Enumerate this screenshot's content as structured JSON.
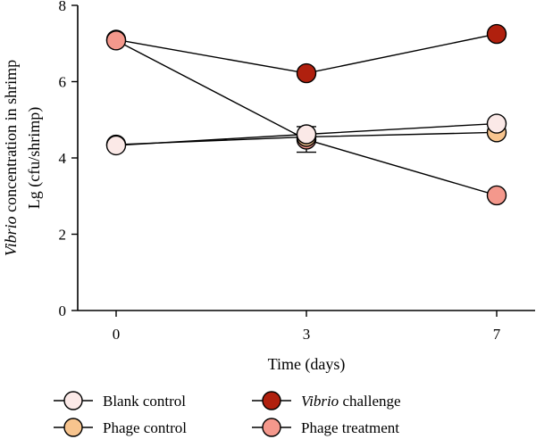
{
  "chart_data": {
    "type": "line",
    "x": [
      0,
      3,
      7
    ],
    "x_tick_labels": [
      "0",
      "3",
      "7"
    ],
    "xlabel": "Time (days)",
    "ylabel_line1_italic": "Vibrio",
    "ylabel_line1_rest": " concentration in shrimp",
    "ylabel_line2": "Lg (cfu/shrimp)",
    "ylim": [
      0,
      8
    ],
    "y_ticks": [
      0,
      2,
      4,
      6,
      8
    ],
    "grid": false,
    "legend_position": "bottom",
    "series": [
      {
        "name": "Blank control",
        "values": [
          4.33,
          4.62,
          4.9
        ],
        "color": "#fbe9e7",
        "name_italic": "",
        "name_rest": "Blank control"
      },
      {
        "name": "Phage control",
        "values": [
          4.35,
          4.55,
          4.67
        ],
        "color": "#f7c48e",
        "name_italic": "",
        "name_rest": "Phage control"
      },
      {
        "name": "Vibrio challenge",
        "values": [
          7.1,
          6.22,
          7.25
        ],
        "color": "#b0200e",
        "name_italic": "Vibrio",
        "name_rest": " challenge"
      },
      {
        "name": "Phage treatment",
        "values": [
          7.08,
          4.48,
          3.02
        ],
        "color": "#f4988c",
        "name_italic": "",
        "name_rest": "Phage treatment"
      }
    ],
    "error_bars": [
      {
        "x": 3,
        "low": 4.15,
        "high": 4.82
      }
    ]
  }
}
